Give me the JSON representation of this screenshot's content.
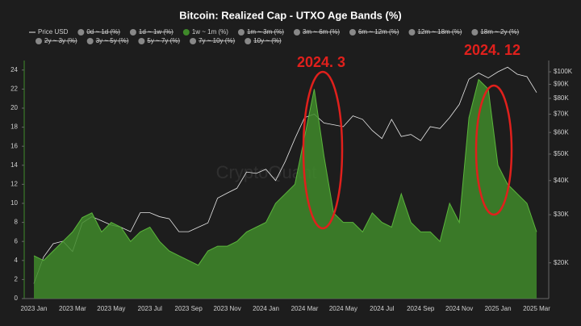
{
  "chart_data": {
    "type": "area",
    "title": "Bitcoin: Realized Cap - UTXO Age Bands (%)",
    "watermark": "CryptoQuant",
    "annotations": [
      "2024. 3",
      "2024. 12"
    ],
    "categories": [
      "2023 Jan",
      null,
      null,
      null,
      "2023 Mar",
      null,
      null,
      null,
      "2023 May",
      null,
      null,
      null,
      "2023 Jul",
      null,
      null,
      null,
      "2023 Sep",
      null,
      null,
      null,
      "2023 Nov",
      null,
      null,
      null,
      "2024 Jan",
      null,
      null,
      null,
      "2024 Mar",
      null,
      null,
      null,
      "2024 May",
      null,
      null,
      null,
      "2024 Jul",
      null,
      null,
      null,
      "2024 Sep",
      null,
      null,
      null,
      "2024 Nov",
      null,
      null,
      null,
      "2025 Jan",
      null,
      null,
      null,
      "2025 Mar"
    ],
    "series": [
      {
        "name": "Price USD",
        "color": "#e8e8e8",
        "axis": "y2",
        "values": [
          16800,
          21000,
          23500,
          24000,
          22000,
          28000,
          29500,
          28500,
          27500,
          27000,
          26000,
          30500,
          30500,
          29500,
          29000,
          26000,
          26000,
          27000,
          28000,
          34500,
          36000,
          37500,
          43000,
          42500,
          44000,
          40000,
          47000,
          57000,
          68000,
          70000,
          65000,
          64000,
          63000,
          69000,
          67000,
          61000,
          57000,
          67000,
          58000,
          59000,
          56000,
          63000,
          62000,
          68000,
          76000,
          94000,
          99000,
          95000,
          100000,
          104000,
          98000,
          96000,
          84000
        ]
      },
      {
        "name": "1w ~ 1m (%)",
        "color": "#3f8a2a",
        "values": [
          4.5,
          4,
          5,
          6,
          7,
          8.5,
          9,
          7,
          8,
          7.5,
          6,
          7,
          7.5,
          6,
          5,
          4.5,
          4,
          3.5,
          5,
          5.5,
          5.5,
          6,
          7,
          7.5,
          8,
          10,
          11,
          12,
          17,
          22,
          15,
          9,
          8,
          8,
          7,
          9,
          8,
          7.5,
          11,
          8,
          7,
          7,
          6,
          10,
          8,
          19,
          23,
          22,
          14,
          12,
          11,
          10,
          7
        ]
      }
    ],
    "hidden_series": [
      {
        "name": "0d ~ 1d (%)",
        "color": "#888888"
      },
      {
        "name": "1d ~ 1w (%)",
        "color": "#888888"
      },
      {
        "name": "1m ~ 3m (%)",
        "color": "#888888"
      },
      {
        "name": "3m ~ 6m (%)",
        "color": "#888888"
      },
      {
        "name": "6m ~ 12m (%)",
        "color": "#888888"
      },
      {
        "name": "12m ~ 18m (%)",
        "color": "#888888"
      },
      {
        "name": "18m ~ 2y (%)",
        "color": "#888888"
      },
      {
        "name": "2y ~ 3y (%)",
        "color": "#888888"
      },
      {
        "name": "3y ~ 5y (%)",
        "color": "#888888"
      },
      {
        "name": "5y ~ 7y (%)",
        "color": "#888888"
      },
      {
        "name": "7y ~ 10y (%)",
        "color": "#888888"
      },
      {
        "name": "10y ~ (%)",
        "color": "#888888"
      }
    ],
    "ylim": [
      0,
      25
    ],
    "yticks": [
      0,
      2,
      4,
      6,
      8,
      10,
      12,
      14,
      16,
      18,
      20,
      22,
      24
    ],
    "y2lim": [
      14800,
      110000
    ],
    "y2scale": "log",
    "y2ticks": [
      {
        "value": 20000,
        "label": "$20K"
      },
      {
        "value": 30000,
        "label": "$30K"
      },
      {
        "value": 40000,
        "label": "$40K"
      },
      {
        "value": 50000,
        "label": "$50K"
      },
      {
        "value": 60000,
        "label": "$60K"
      },
      {
        "value": 70000,
        "label": "$70K"
      },
      {
        "value": 80000,
        "label": "$80K"
      },
      {
        "value": 90000,
        "label": "$90K"
      },
      {
        "value": 100000,
        "label": "$100K"
      }
    ]
  }
}
